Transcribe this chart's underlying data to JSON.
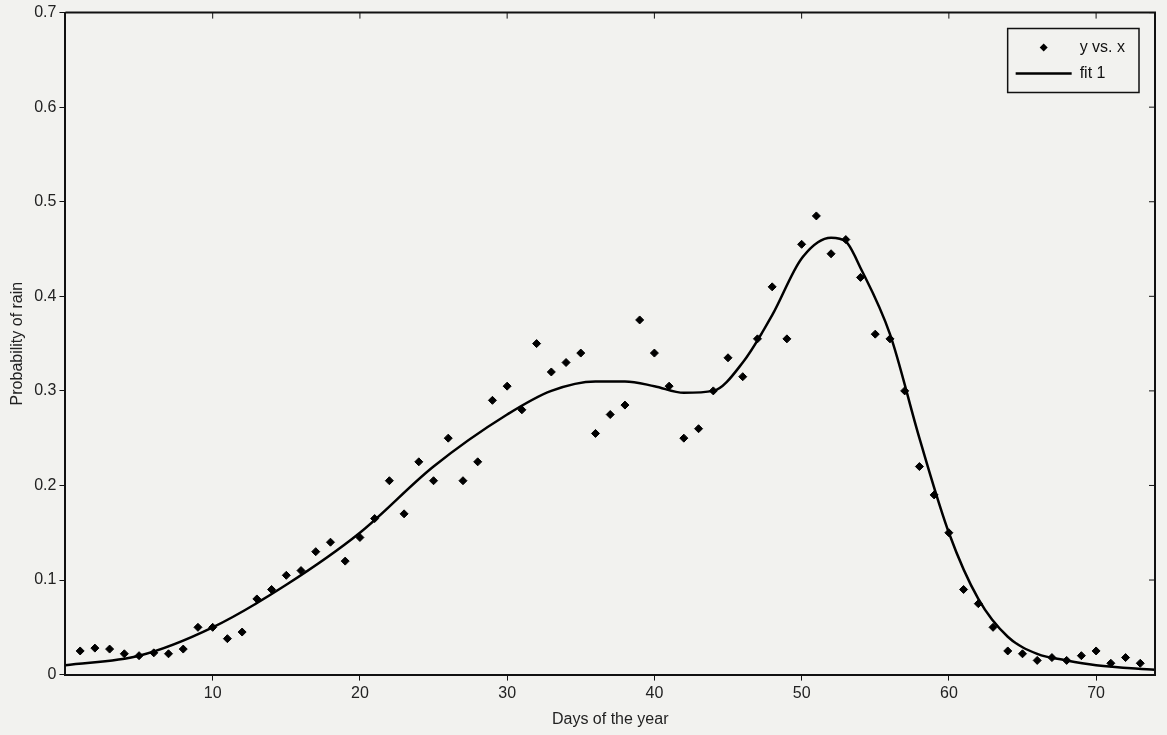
{
  "chart_data": {
    "type": "scatter",
    "xlabel": "Days of the year",
    "ylabel": "Probability of rain",
    "xlim": [
      0,
      74
    ],
    "ylim": [
      0,
      0.7
    ],
    "xticks": [
      10,
      20,
      30,
      40,
      50,
      60,
      70
    ],
    "yticks": [
      0,
      0.1,
      0.2,
      0.3,
      0.4,
      0.5,
      0.6,
      0.7
    ],
    "legend": "top right",
    "grid": false,
    "series": [
      {
        "name": "y vs. x",
        "marker": "diamond",
        "color": "#000000",
        "x": [
          1,
          2,
          3,
          4,
          5,
          6,
          7,
          8,
          9,
          10,
          11,
          12,
          13,
          14,
          15,
          16,
          17,
          18,
          19,
          20,
          21,
          22,
          23,
          24,
          25,
          26,
          27,
          28,
          29,
          30,
          31,
          32,
          33,
          34,
          35,
          36,
          37,
          38,
          39,
          40,
          41,
          42,
          43,
          44,
          45,
          46,
          47,
          48,
          49,
          50,
          51,
          52,
          53,
          54,
          55,
          56,
          57,
          58,
          59,
          60,
          61,
          62,
          63,
          64,
          65,
          66,
          67,
          68,
          69,
          70,
          71,
          72,
          73
        ],
        "values": [
          0.025,
          0.028,
          0.027,
          0.022,
          0.02,
          0.023,
          0.022,
          0.027,
          0.05,
          0.05,
          0.038,
          0.045,
          0.08,
          0.09,
          0.105,
          0.11,
          0.13,
          0.14,
          0.12,
          0.145,
          0.165,
          0.205,
          0.17,
          0.225,
          0.205,
          0.25,
          0.205,
          0.225,
          0.29,
          0.305,
          0.28,
          0.35,
          0.32,
          0.33,
          0.34,
          0.255,
          0.275,
          0.285,
          0.375,
          0.34,
          0.305,
          0.25,
          0.26,
          0.3,
          0.335,
          0.315,
          0.355,
          0.41,
          0.355,
          0.455,
          0.485,
          0.445,
          0.46,
          0.42,
          0.36,
          0.355,
          0.3,
          0.22,
          0.19,
          0.15,
          0.09,
          0.075,
          0.05,
          0.025,
          0.022,
          0.015,
          0.018,
          0.015,
          0.02,
          0.025,
          0.012,
          0.018,
          0.012
        ]
      },
      {
        "name": "fit 1",
        "type": "line",
        "marker": "none",
        "line_style": "solid",
        "color": "#000000",
        "x": [
          0,
          5,
          10,
          15,
          20,
          25,
          30,
          33,
          36,
          38,
          40,
          42,
          44,
          46,
          48,
          50,
          52,
          53,
          54,
          56,
          58,
          60,
          62,
          64,
          66,
          68,
          70,
          74
        ],
        "values": [
          0.01,
          0.02,
          0.05,
          0.095,
          0.15,
          0.22,
          0.275,
          0.3,
          0.31,
          0.31,
          0.305,
          0.298,
          0.3,
          0.33,
          0.38,
          0.44,
          0.462,
          0.458,
          0.43,
          0.36,
          0.25,
          0.15,
          0.08,
          0.04,
          0.022,
          0.015,
          0.01,
          0.005
        ]
      }
    ]
  }
}
